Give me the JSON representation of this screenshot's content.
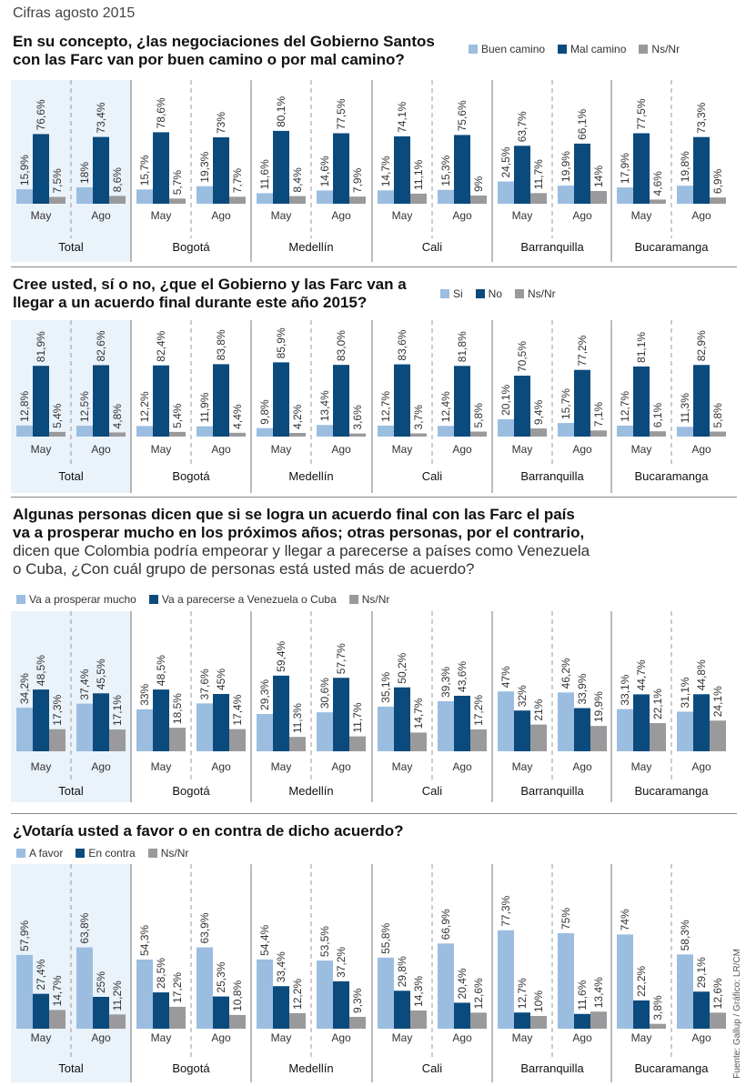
{
  "header": {
    "subtitle": "Cifras agosto 2015"
  },
  "colors": {
    "light": "#9bbde0",
    "dark": "#0b4a7c",
    "gray": "#9a9a9c",
    "totalBg": "#eaf2fa"
  },
  "fuente": "Fuente: Gallup / Gráfico: LR/CM",
  "chart_data": [
    {
      "type": "bar",
      "title": "En su concepto, ¿las negociaciones del Gobierno Santos con las Farc van por buen camino o por mal camino?",
      "legend": [
        "Buen camino",
        "Mal camino",
        "Ns/Nr"
      ],
      "ylim": [
        0,
        100
      ],
      "periods": [
        "May",
        "Ago"
      ],
      "groups": [
        {
          "city": "Total",
          "values": [
            [
              15.9,
              76.6,
              7.5
            ],
            [
              18,
              73.4,
              8.6
            ]
          ],
          "labels": [
            [
              "15,9%",
              "76,6%",
              "7,5%"
            ],
            [
              "18%",
              "73,4%",
              "8,6%"
            ]
          ]
        },
        {
          "city": "Bogotá",
          "values": [
            [
              15.7,
              78.6,
              5.7
            ],
            [
              19.3,
              73,
              7.7
            ]
          ],
          "labels": [
            [
              "15,7%",
              "78,6%",
              "5,7%"
            ],
            [
              "19,3%",
              "73%",
              "7,7%"
            ]
          ]
        },
        {
          "city": "Medellín",
          "values": [
            [
              11.6,
              80.1,
              8.4
            ],
            [
              14.6,
              77.5,
              7.9
            ]
          ],
          "labels": [
            [
              "11,6%",
              "80,1%",
              "8,4%"
            ],
            [
              "14,6%",
              "77,5%",
              "7,9%"
            ]
          ]
        },
        {
          "city": "Cali",
          "values": [
            [
              14.7,
              74.1,
              11.1
            ],
            [
              15.3,
              75.6,
              9
            ]
          ],
          "labels": [
            [
              "14,7%",
              "74,1%",
              "11,1%"
            ],
            [
              "15,3%",
              "75,6%",
              "9%"
            ]
          ]
        },
        {
          "city": "Barranquilla",
          "values": [
            [
              24.5,
              63.7,
              11.7
            ],
            [
              19.9,
              66.1,
              14
            ]
          ],
          "labels": [
            [
              "24,5%",
              "63,7%",
              "11,7%"
            ],
            [
              "19,9%",
              "66,1%",
              "14%"
            ]
          ]
        },
        {
          "city": "Bucaramanga",
          "values": [
            [
              17.9,
              77.5,
              4.6
            ],
            [
              19.8,
              73.3,
              6.9
            ]
          ],
          "labels": [
            [
              "17,9%",
              "77,5%",
              "4,6%"
            ],
            [
              "19,8%",
              "73,3%",
              "6,9%"
            ]
          ]
        }
      ]
    },
    {
      "type": "bar",
      "title": "Cree usted, sí o no, ¿que el Gobierno y las Farc van a llegar a un acuerdo final durante este año 2015?",
      "legend": [
        "Si",
        "No",
        "Ns/Nr"
      ],
      "ylim": [
        0,
        100
      ],
      "periods": [
        "May",
        "Ago"
      ],
      "groups": [
        {
          "city": "Total",
          "values": [
            [
              12.8,
              81.9,
              5.4
            ],
            [
              12.5,
              82.6,
              4.8
            ]
          ],
          "labels": [
            [
              "12,8%",
              "81,9%",
              "5,4%"
            ],
            [
              "12,5%",
              "82,6%",
              "4,8%"
            ]
          ]
        },
        {
          "city": "Bogotá",
          "values": [
            [
              12.2,
              82.4,
              5.4
            ],
            [
              11.9,
              83.8,
              4.4
            ]
          ],
          "labels": [
            [
              "12,2%",
              "82,4%",
              "5,4%"
            ],
            [
              "11,9%",
              "83,8%",
              "4,4%"
            ]
          ]
        },
        {
          "city": "Medellín",
          "values": [
            [
              9.8,
              85.9,
              4.2
            ],
            [
              13.4,
              83.0,
              3.6
            ]
          ],
          "labels": [
            [
              "9,8%",
              "85,9%",
              "4,2%"
            ],
            [
              "13,4%",
              "83,0%",
              "3,6%"
            ]
          ]
        },
        {
          "city": "Cali",
          "values": [
            [
              12.7,
              83.6,
              3.7
            ],
            [
              12.4,
              81.8,
              5.8
            ]
          ],
          "labels": [
            [
              "12,7%",
              "83,6%",
              "3,7%"
            ],
            [
              "12,4%",
              "81,8%",
              "5,8%"
            ]
          ]
        },
        {
          "city": "Barranquilla",
          "values": [
            [
              20.1,
              70.5,
              9.4
            ],
            [
              15.7,
              77.2,
              7.1
            ]
          ],
          "labels": [
            [
              "20,1%",
              "70,5%",
              "9,4%"
            ],
            [
              "15,7%",
              "77,2%",
              "7,1%"
            ]
          ]
        },
        {
          "city": "Bucaramanga",
          "values": [
            [
              12.7,
              81.1,
              6.1
            ],
            [
              11.3,
              82.9,
              5.8
            ]
          ],
          "labels": [
            [
              "12,7%",
              "81,1%",
              "6,1%"
            ],
            [
              "11,3%",
              "82,9%",
              "5,8%"
            ]
          ]
        }
      ]
    },
    {
      "type": "bar",
      "title": "Algunas personas dicen que si se logra un acuerdo final con las Farc el país va a prosperar mucho en los próximos años; otras personas, por el contrario,",
      "subtitle": "dicen que Colombia podría empeorar y llegar a parecerse a países como Venezuela o Cuba, ¿Con cuál grupo de personas está usted más de acuerdo?",
      "legend": [
        "Va a prosperar mucho",
        "Va a parecerse a Venezuela o Cuba",
        "Ns/Nr"
      ],
      "ylim": [
        0,
        100
      ],
      "periods": [
        "May",
        "Ago"
      ],
      "groups": [
        {
          "city": "Total",
          "values": [
            [
              34.2,
              48.5,
              17.3
            ],
            [
              37.4,
              45.5,
              17.1
            ]
          ],
          "labels": [
            [
              "34,2%",
              "48,5%",
              "17,3%"
            ],
            [
              "37,4%",
              "45,5%",
              "17,1%"
            ]
          ]
        },
        {
          "city": "Bogotá",
          "values": [
            [
              33,
              48.5,
              18.5
            ],
            [
              37.6,
              45,
              17.4
            ]
          ],
          "labels": [
            [
              "33%",
              "48,5%",
              "18,5%"
            ],
            [
              "37,6%",
              "45%",
              "17,4%"
            ]
          ]
        },
        {
          "city": "Medellín",
          "values": [
            [
              29.3,
              59.4,
              11.3
            ],
            [
              30.6,
              57.7,
              11.7
            ]
          ],
          "labels": [
            [
              "29,3%",
              "59,4%",
              "11,3%"
            ],
            [
              "30,6%",
              "57,7%",
              "11,7%"
            ]
          ]
        },
        {
          "city": "Cali",
          "values": [
            [
              35.1,
              50.2,
              14.7
            ],
            [
              39.3,
              43.6,
              17.2
            ]
          ],
          "labels": [
            [
              "35,1%",
              "50,2%",
              "14,7%"
            ],
            [
              "39,3%",
              "43,6%",
              "17,2%"
            ]
          ]
        },
        {
          "city": "Barranquilla",
          "values": [
            [
              47,
              32,
              21
            ],
            [
              46.2,
              33.9,
              19.9
            ]
          ],
          "labels": [
            [
              "47%",
              "32%",
              "21%"
            ],
            [
              "46,2%",
              "33,9%",
              "19,9%"
            ]
          ]
        },
        {
          "city": "Bucaramanga",
          "values": [
            [
              33.1,
              44.7,
              22.1
            ],
            [
              31.1,
              44.8,
              24.1
            ]
          ],
          "labels": [
            [
              "33,1%",
              "44,7%",
              "22,1%"
            ],
            [
              "31,1%",
              "44,8%",
              "24,1%"
            ]
          ]
        }
      ]
    },
    {
      "type": "bar",
      "title": "¿Votaría usted a favor o en contra de dicho acuerdo?",
      "legend": [
        "A favor",
        "En contra",
        "Ns/Nr"
      ],
      "ylim": [
        0,
        100
      ],
      "periods": [
        "May",
        "Ago"
      ],
      "groups": [
        {
          "city": "Total",
          "values": [
            [
              57.9,
              27.4,
              14.7
            ],
            [
              63.8,
              25,
              11.2
            ]
          ],
          "labels": [
            [
              "57,9%",
              "27,4%",
              "14,7%"
            ],
            [
              "63,8%",
              "25%",
              "11,2%"
            ]
          ]
        },
        {
          "city": "Bogotá",
          "values": [
            [
              54.3,
              28.5,
              17.2
            ],
            [
              63.9,
              25.3,
              10.8
            ]
          ],
          "labels": [
            [
              "54,3%",
              "28,5%",
              "17,2%"
            ],
            [
              "63,9%",
              "25,3%",
              "10,8%"
            ]
          ]
        },
        {
          "city": "Medellín",
          "values": [
            [
              54.4,
              33.4,
              12.2
            ],
            [
              53.5,
              37.2,
              9.3
            ]
          ],
          "labels": [
            [
              "54,4%",
              "33,4%",
              "12,2%"
            ],
            [
              "53,5%",
              "37,2%",
              "9,3%"
            ]
          ]
        },
        {
          "city": "Cali",
          "values": [
            [
              55.8,
              29.8,
              14.3
            ],
            [
              66.9,
              20.4,
              12.6
            ]
          ],
          "labels": [
            [
              "55,8%",
              "29,8%",
              "14,3%"
            ],
            [
              "66,9%",
              "20,4%",
              "12,6%"
            ]
          ]
        },
        {
          "city": "Barranquilla",
          "values": [
            [
              77.3,
              12.7,
              10
            ],
            [
              75,
              11.6,
              13.4
            ]
          ],
          "labels": [
            [
              "77,3%",
              "12,7%",
              "10%"
            ],
            [
              "75%",
              "11,6%",
              "13,4%"
            ]
          ]
        },
        {
          "city": "Bucaramanga",
          "values": [
            [
              74,
              22.2,
              3.8
            ],
            [
              58.3,
              29.1,
              12.6
            ]
          ],
          "labels": [
            [
              "74%",
              "22,2%",
              "3,8%"
            ],
            [
              "58,3%",
              "29,1%",
              "12,6%"
            ]
          ]
        }
      ]
    }
  ]
}
